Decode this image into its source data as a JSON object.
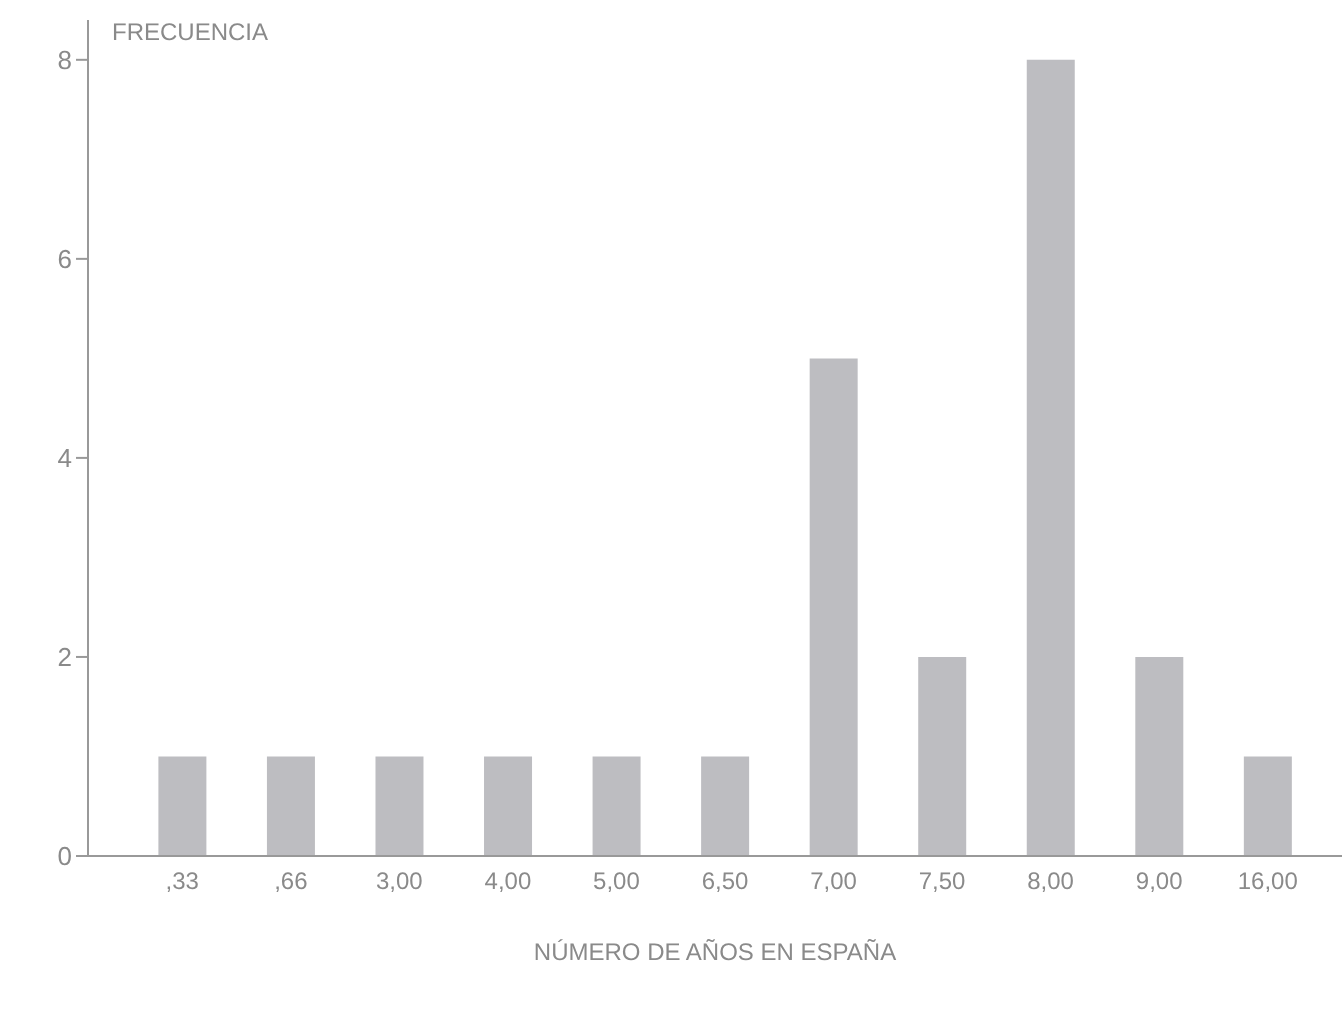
{
  "chart_data": {
    "type": "bar",
    "xlabel": "NÚMERO DE AÑOS EN ESPAÑA",
    "ylabel": "FRECUENCIA",
    "categories": [
      ",33",
      ",66",
      "3,00",
      "4,00",
      "5,00",
      "6,50",
      "7,00",
      "7,50",
      "8,00",
      "9,00",
      "16,00"
    ],
    "values": [
      1,
      1,
      1,
      1,
      1,
      1,
      5,
      2,
      8,
      2,
      1
    ],
    "color": "#bdbdc1",
    "ylim": [
      0,
      8.4
    ],
    "yticks": [
      0,
      2,
      4,
      6,
      8
    ],
    "grid": false,
    "legend": false
  }
}
